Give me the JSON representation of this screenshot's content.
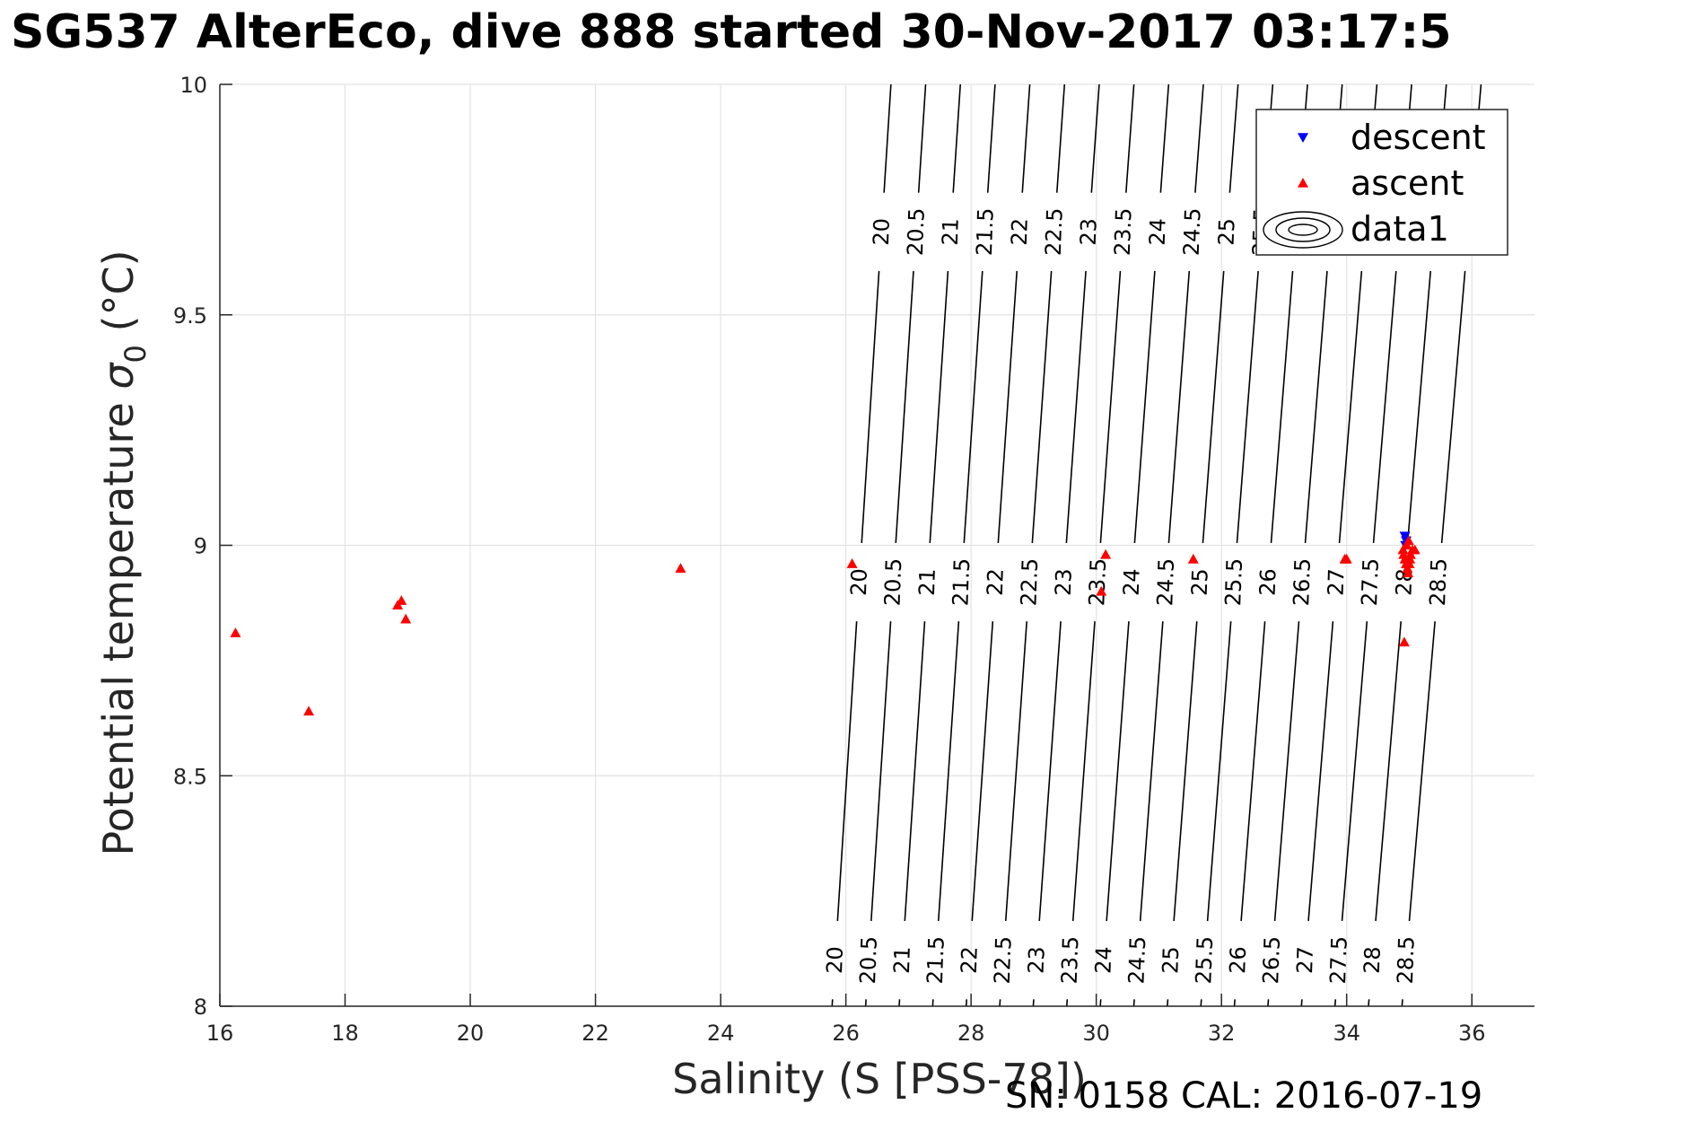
{
  "title": "SG537 AlterEco, dive 888 started 30-Nov-2017 03:17:5",
  "footer": "SN: 0158  CAL: 2016-07-19",
  "chart_data": {
    "type": "scatter",
    "xlabel": "Salinity (S [PSS-78])",
    "ylabel_main": "Potential temperature ",
    "ylabel_sigma": "σ",
    "ylabel_sub": "0",
    "ylabel_unit": " (°C)",
    "xlim": [
      16,
      37
    ],
    "ylim": [
      8,
      10
    ],
    "xticks": [
      16,
      18,
      20,
      22,
      24,
      26,
      28,
      30,
      32,
      34,
      36
    ],
    "yticks": [
      8,
      8.5,
      9,
      9.5,
      10
    ],
    "grid": true,
    "legend_position": "top-right",
    "legend": [
      "descent",
      "ascent",
      "data1"
    ],
    "colors": {
      "descent": "#0000ff",
      "ascent": "#ff0000",
      "contour": "#000000"
    },
    "series": [
      {
        "name": "descent",
        "marker": "triangle-down",
        "x": [
          34.93,
          34.95,
          34.94
        ],
        "y": [
          9.02,
          9.01,
          9.0
        ]
      },
      {
        "name": "ascent",
        "marker": "triangle-up",
        "x": [
          16.25,
          17.42,
          18.84,
          18.9,
          18.97,
          23.36,
          26.1,
          30.08,
          30.15,
          31.55,
          33.97,
          34.0,
          34.9,
          34.91,
          34.93,
          34.95,
          34.97,
          34.98,
          35.0,
          35.02,
          35.05,
          35.09,
          34.92,
          34.96,
          34.99,
          35.01
        ],
        "y": [
          8.81,
          8.64,
          8.87,
          8.88,
          8.84,
          8.95,
          8.96,
          8.9,
          8.98,
          8.97,
          8.97,
          8.97,
          8.99,
          8.98,
          8.97,
          8.96,
          8.95,
          8.94,
          8.96,
          8.98,
          8.99,
          8.99,
          8.79,
          9.0,
          9.01,
          8.97
        ]
      }
    ],
    "contours": {
      "name": "data1",
      "levels": [
        20,
        20.5,
        21,
        21.5,
        22,
        22.5,
        23,
        23.5,
        24,
        24.5,
        25,
        25.5,
        26,
        26.5,
        27,
        27.5,
        28,
        28.5
      ],
      "label_rows_y": [
        9.68,
        8.92,
        8.1
      ],
      "label_gaps_y": [
        9.68,
        8.92,
        8.1
      ],
      "labels": [
        "20",
        "20.5",
        "21",
        "21.5",
        "22",
        "22.5",
        "23",
        "23.5",
        "24",
        "24.5",
        "25",
        "25.5",
        "26",
        "26.5",
        "27",
        "27.5",
        "28",
        "28.5"
      ]
    }
  }
}
